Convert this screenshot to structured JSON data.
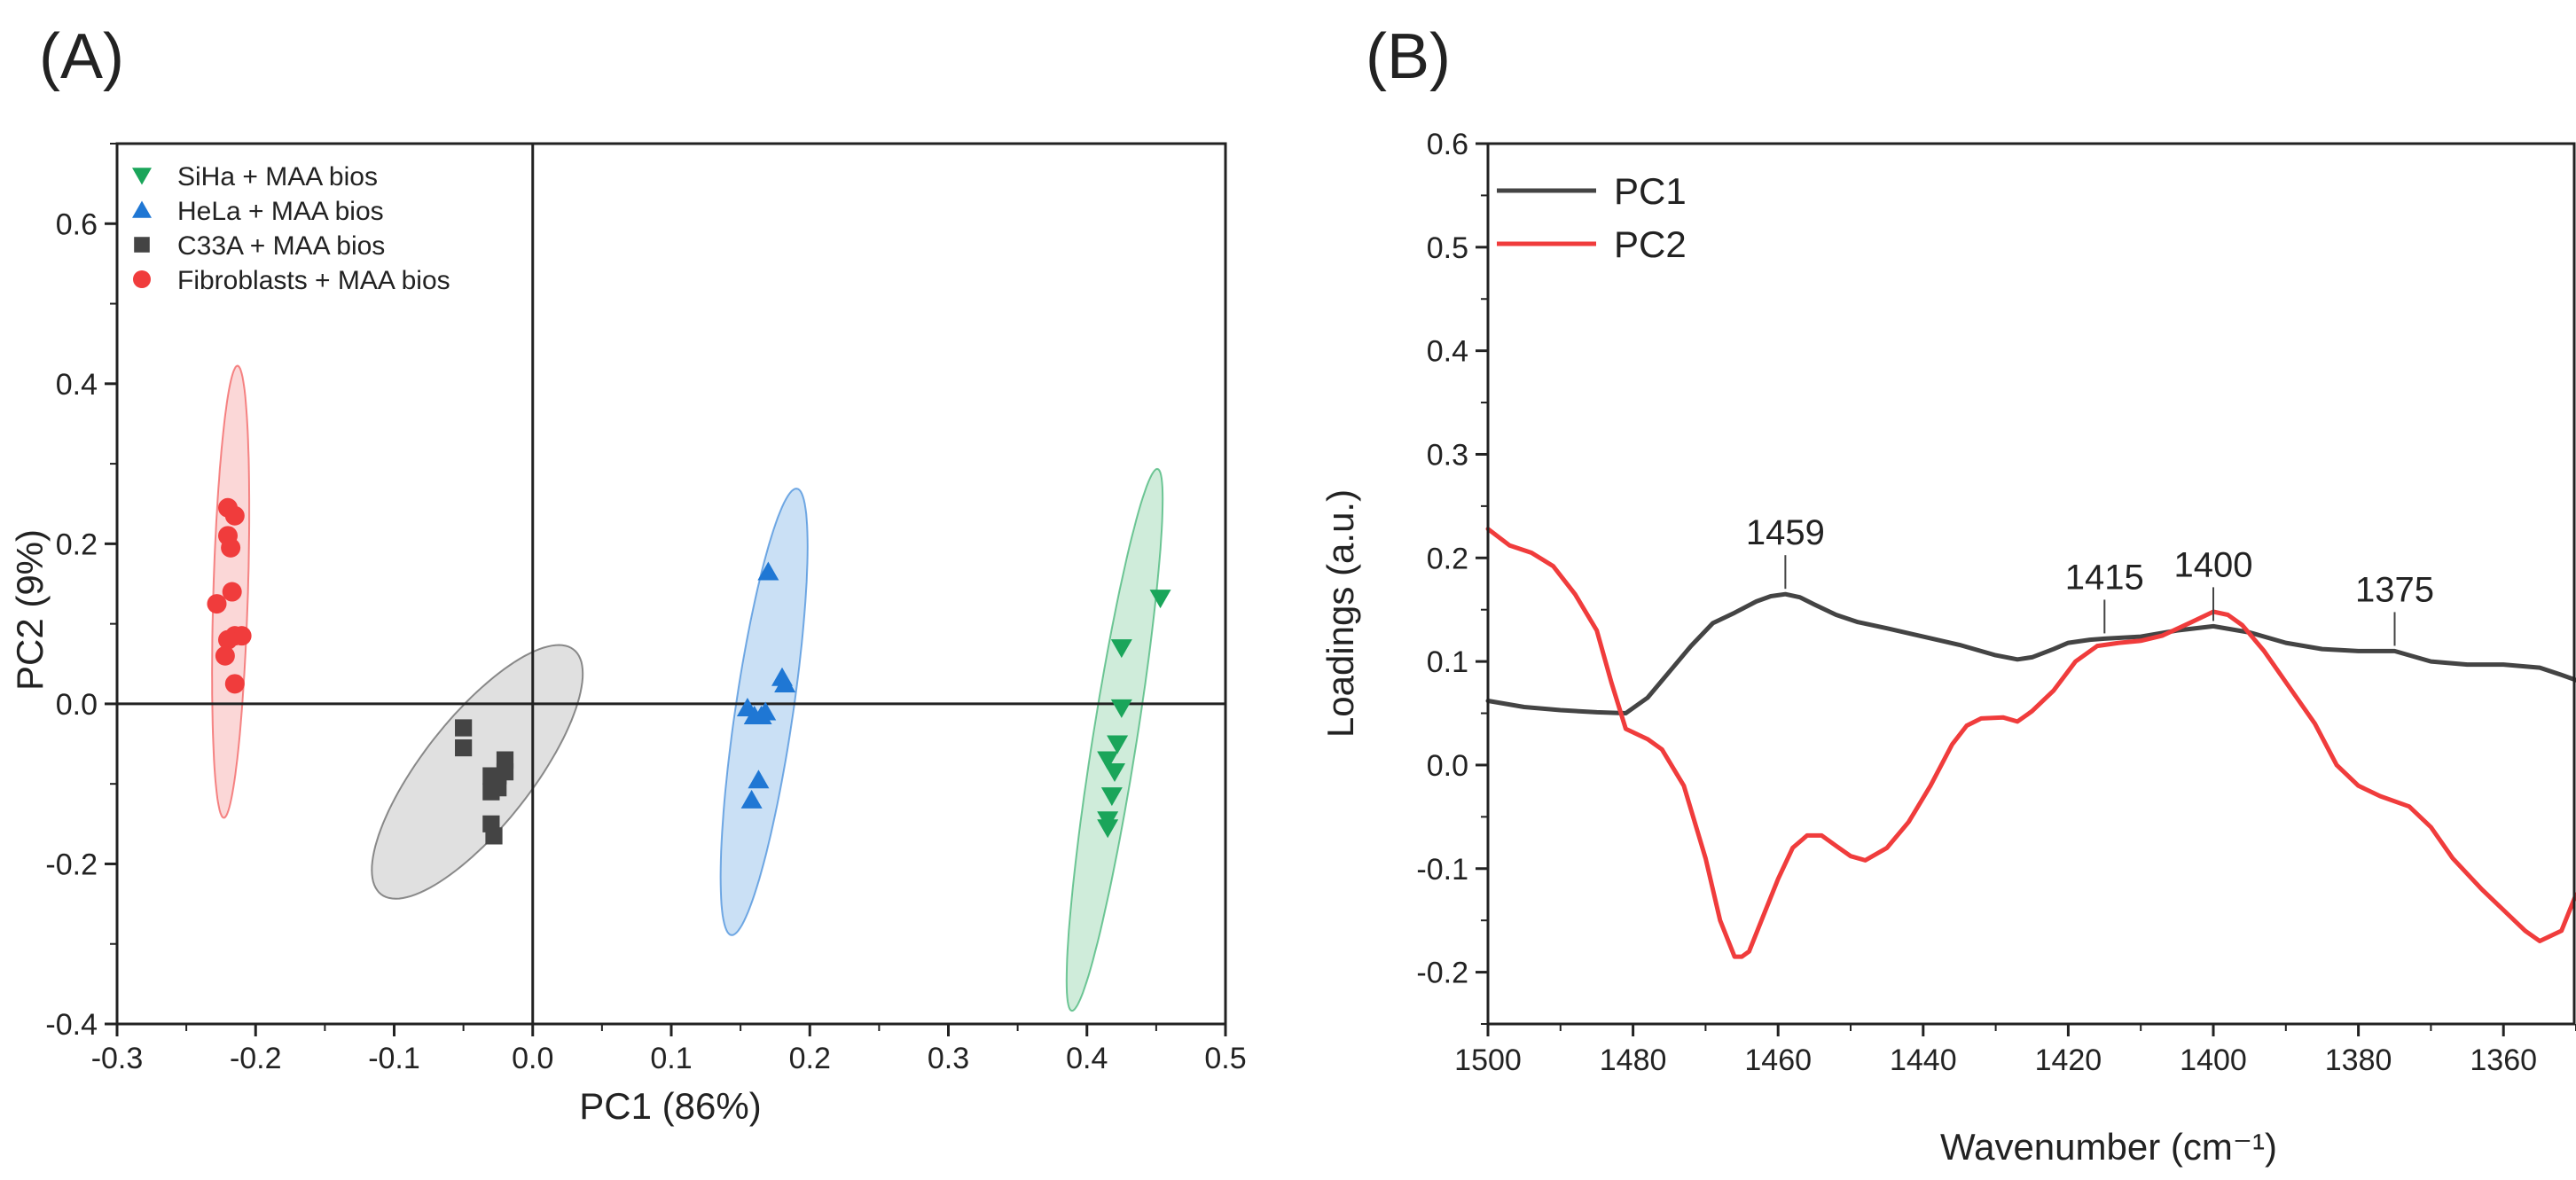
{
  "chart_data": [
    {
      "panel": "(A)",
      "type": "scatter",
      "xlabel": "PC1 (86%)",
      "ylabel": "PC2 (9%)",
      "xlim": [
        -0.3,
        0.5
      ],
      "ylim": [
        -0.4,
        0.7
      ],
      "xticks": [
        -0.3,
        -0.2,
        -0.1,
        0.0,
        0.1,
        0.2,
        0.3,
        0.4,
        0.5
      ],
      "xtick_labels": [
        "-0.3",
        "-0.2",
        "-0.1",
        "0.0",
        "0.1",
        "0.2",
        "0.3",
        "0.4",
        "0.5"
      ],
      "yticks": [
        -0.4,
        -0.2,
        0.0,
        0.2,
        0.4,
        0.6
      ],
      "ytick_labels": [
        "-0.4",
        "-0.2",
        "0.0",
        "0.2",
        "0.4",
        "0.6"
      ],
      "legend_position": "top-left",
      "series": [
        {
          "name": "SiHa + MAA bios",
          "marker": "triangle-down",
          "color": "#1aa55a",
          "fill": "#bfe6cd",
          "points": [
            [
              0.453,
              0.132
            ],
            [
              0.425,
              0.07
            ],
            [
              0.425,
              -0.005
            ],
            [
              0.422,
              -0.05
            ],
            [
              0.415,
              -0.07
            ],
            [
              0.42,
              -0.085
            ],
            [
              0.418,
              -0.115
            ],
            [
              0.415,
              -0.145
            ],
            [
              0.415,
              -0.155
            ]
          ],
          "ellipse": {
            "cx": 0.42,
            "cy": -0.045,
            "length": 0.68,
            "width": 0.032,
            "angle_deg": 84.8
          }
        },
        {
          "name": "HeLa + MAA bios",
          "marker": "triangle-up",
          "color": "#1f77d4",
          "fill": "#b8d6f2",
          "points": [
            [
              0.17,
              0.165
            ],
            [
              0.18,
              0.033
            ],
            [
              0.182,
              0.025
            ],
            [
              0.155,
              -0.005
            ],
            [
              0.16,
              -0.015
            ],
            [
              0.168,
              -0.01
            ],
            [
              0.165,
              -0.015
            ],
            [
              0.163,
              -0.095
            ],
            [
              0.158,
              -0.12
            ]
          ],
          "ellipse": {
            "cx": 0.167,
            "cy": -0.01,
            "length": 0.56,
            "width": 0.042,
            "angle_deg": 85.2
          }
        },
        {
          "name": "C33A + MAA bios",
          "marker": "square",
          "color": "#444444",
          "fill": "#d6d6d6",
          "points": [
            [
              -0.05,
              -0.03
            ],
            [
              -0.05,
              -0.055
            ],
            [
              -0.02,
              -0.07
            ],
            [
              -0.02,
              -0.085
            ],
            [
              -0.025,
              -0.09
            ],
            [
              -0.03,
              -0.09
            ],
            [
              -0.025,
              -0.105
            ],
            [
              -0.03,
              -0.11
            ],
            [
              -0.03,
              -0.15
            ],
            [
              -0.028,
              -0.165
            ]
          ],
          "ellipse": {
            "cx": -0.04,
            "cy": -0.085,
            "length": 0.34,
            "width": 0.09,
            "angle_deg": 68
          }
        },
        {
          "name": "Fibroblasts + MAA bios",
          "marker": "circle",
          "color": "#f03c3c",
          "fill": "#f9c9c9",
          "points": [
            [
              -0.22,
              0.245
            ],
            [
              -0.215,
              0.235
            ],
            [
              -0.22,
              0.21
            ],
            [
              -0.218,
              0.195
            ],
            [
              -0.217,
              0.14
            ],
            [
              -0.228,
              0.125
            ],
            [
              -0.215,
              0.085
            ],
            [
              -0.21,
              0.085
            ],
            [
              -0.22,
              0.08
            ],
            [
              -0.222,
              0.06
            ],
            [
              -0.215,
              0.025
            ]
          ],
          "ellipse": {
            "cx": -0.218,
            "cy": 0.14,
            "length": 0.565,
            "width": 0.025,
            "angle_deg": 89
          }
        }
      ]
    },
    {
      "panel": "(B)",
      "type": "line",
      "xlabel": "Wavenumber (cm⁻¹)",
      "ylabel": "Loadings (a.u.)",
      "xlim": [
        1500,
        1350
      ],
      "ylim": [
        -0.25,
        0.6
      ],
      "xticks": [
        1500,
        1480,
        1460,
        1440,
        1420,
        1400,
        1380,
        1360
      ],
      "xtick_labels": [
        "1500",
        "1480",
        "1460",
        "1440",
        "1420",
        "1400",
        "1380",
        "1360"
      ],
      "yticks": [
        -0.2,
        -0.1,
        0.0,
        0.1,
        0.2,
        0.3,
        0.4,
        0.5,
        0.6
      ],
      "ytick_labels": [
        "-0.2",
        "-0.1",
        "0.0",
        "0.1",
        "0.2",
        "0.3",
        "0.4",
        "0.5",
        "0.6"
      ],
      "legend_position": "top-left",
      "series": [
        {
          "name": "PC1",
          "color": "#444444",
          "x": [
            1500,
            1495,
            1490,
            1485,
            1481,
            1478,
            1475,
            1472,
            1469,
            1466,
            1463,
            1461,
            1459,
            1457,
            1455,
            1452,
            1449,
            1445,
            1440,
            1435,
            1430,
            1427,
            1425,
            1422,
            1420,
            1417,
            1415,
            1410,
            1405,
            1400,
            1395,
            1390,
            1385,
            1380,
            1375,
            1370,
            1365,
            1360,
            1355,
            1352,
            1350
          ],
          "values": [
            0.062,
            0.056,
            0.053,
            0.051,
            0.05,
            0.065,
            0.09,
            0.115,
            0.137,
            0.147,
            0.158,
            0.163,
            0.165,
            0.162,
            0.155,
            0.145,
            0.138,
            0.132,
            0.124,
            0.116,
            0.106,
            0.102,
            0.104,
            0.112,
            0.118,
            0.121,
            0.122,
            0.124,
            0.13,
            0.134,
            0.128,
            0.118,
            0.112,
            0.11,
            0.11,
            0.1,
            0.097,
            0.097,
            0.094,
            0.087,
            0.082
          ]
        },
        {
          "name": "PC2",
          "color": "#f03c3c",
          "x": [
            1500,
            1497,
            1494,
            1491,
            1488,
            1485,
            1483,
            1481,
            1478,
            1476,
            1473,
            1470,
            1468,
            1466,
            1465,
            1464,
            1462,
            1460,
            1458,
            1456,
            1454,
            1452,
            1450,
            1448,
            1445,
            1442,
            1439,
            1436,
            1434,
            1432,
            1429,
            1427,
            1425,
            1422,
            1419,
            1416,
            1413,
            1410,
            1407,
            1403,
            1400,
            1398,
            1396,
            1393,
            1390,
            1386,
            1383,
            1380,
            1377,
            1373,
            1370,
            1367,
            1363,
            1360,
            1357,
            1355,
            1352,
            1350
          ],
          "values": [
            0.228,
            0.212,
            0.205,
            0.192,
            0.165,
            0.13,
            0.08,
            0.035,
            0.025,
            0.015,
            -0.02,
            -0.09,
            -0.15,
            -0.185,
            -0.185,
            -0.18,
            -0.145,
            -0.11,
            -0.08,
            -0.068,
            -0.068,
            -0.078,
            -0.088,
            -0.092,
            -0.08,
            -0.055,
            -0.02,
            0.02,
            0.038,
            0.045,
            0.046,
            0.042,
            0.052,
            0.072,
            0.1,
            0.115,
            0.118,
            0.12,
            0.125,
            0.138,
            0.148,
            0.145,
            0.135,
            0.11,
            0.08,
            0.04,
            0.0,
            -0.02,
            -0.03,
            -0.04,
            -0.06,
            -0.09,
            -0.12,
            -0.14,
            -0.16,
            -0.17,
            -0.16,
            -0.125
          ]
        }
      ],
      "annotations": [
        {
          "label": "1459",
          "x": 1459,
          "y": 0.165
        },
        {
          "label": "1415",
          "x": 1415,
          "y": 0.122
        },
        {
          "label": "1400",
          "x": 1400,
          "y": 0.134
        },
        {
          "label": "1375",
          "x": 1375,
          "y": 0.11
        }
      ]
    }
  ]
}
